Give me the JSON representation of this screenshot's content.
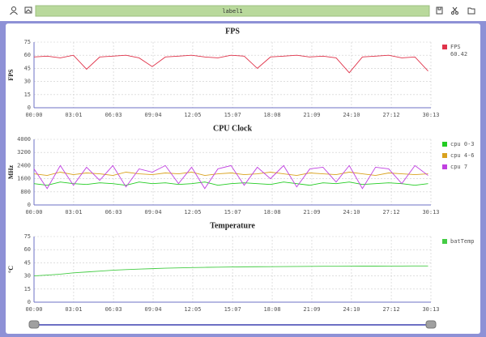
{
  "toolbar": {
    "label": "label1"
  },
  "chart_data": [
    {
      "type": "line",
      "title": "FPS",
      "y_label": "FPS",
      "summary": "60.42",
      "x": [
        0,
        60,
        120,
        180,
        240,
        300,
        360,
        420,
        480,
        540,
        600,
        660,
        720,
        780,
        840,
        900,
        960,
        1020,
        1080,
        1140,
        1200,
        1260,
        1320,
        1380,
        1440,
        1500,
        1560,
        1620,
        1680,
        1740,
        1800
      ],
      "xlim": [
        0,
        1813
      ],
      "xticks": [
        {
          "value": 0,
          "label": "00:00"
        },
        {
          "value": 181,
          "label": "03:01"
        },
        {
          "value": 363,
          "label": "06:03"
        },
        {
          "value": 544,
          "label": "09:04"
        },
        {
          "value": 725,
          "label": "12:05"
        },
        {
          "value": 907,
          "label": "15:07"
        },
        {
          "value": 1088,
          "label": "18:08"
        },
        {
          "value": 1269,
          "label": "21:09"
        },
        {
          "value": 1450,
          "label": "24:10"
        },
        {
          "value": 1632,
          "label": "27:12"
        },
        {
          "value": 1813,
          "label": "30:13"
        }
      ],
      "ylim": [
        0,
        75
      ],
      "yticks": [
        0,
        15,
        30,
        45,
        60,
        75
      ],
      "grid": true,
      "series": [
        {
          "name": "FPS",
          "color": "#e0334a",
          "values": [
            58,
            59,
            57,
            60,
            44,
            58,
            59,
            60,
            57,
            47,
            58,
            59,
            60,
            58,
            57,
            60,
            59,
            45,
            58,
            59,
            60,
            58,
            59,
            57,
            40,
            58,
            59,
            60,
            57,
            58,
            42
          ]
        }
      ]
    },
    {
      "type": "line",
      "title": "CPU Clock",
      "y_label": "MHz",
      "x": [
        0,
        60,
        120,
        180,
        240,
        300,
        360,
        420,
        480,
        540,
        600,
        660,
        720,
        780,
        840,
        900,
        960,
        1020,
        1080,
        1140,
        1200,
        1260,
        1320,
        1380,
        1440,
        1500,
        1560,
        1620,
        1680,
        1740,
        1800
      ],
      "xlim": [
        0,
        1813
      ],
      "xticks": [
        {
          "value": 0,
          "label": "00:00"
        },
        {
          "value": 181,
          "label": "03:01"
        },
        {
          "value": 363,
          "label": "06:03"
        },
        {
          "value": 544,
          "label": "09:04"
        },
        {
          "value": 725,
          "label": "12:05"
        },
        {
          "value": 907,
          "label": "15:07"
        },
        {
          "value": 1088,
          "label": "18:08"
        },
        {
          "value": 1269,
          "label": "21:09"
        },
        {
          "value": 1450,
          "label": "24:10"
        },
        {
          "value": 1632,
          "label": "27:12"
        },
        {
          "value": 1813,
          "label": "30:13"
        }
      ],
      "ylim": [
        0,
        4000
      ],
      "yticks": [
        0,
        800,
        1600,
        2400,
        3200,
        4000
      ],
      "grid": true,
      "series": [
        {
          "name": "cpu 0-3",
          "color": "#22cc22",
          "values": [
            1300,
            1200,
            1400,
            1300,
            1250,
            1350,
            1300,
            1200,
            1400,
            1300,
            1350,
            1250,
            1300,
            1400,
            1200,
            1300,
            1350,
            1300,
            1250,
            1400,
            1300,
            1200,
            1350,
            1300,
            1400,
            1250,
            1300,
            1350,
            1300,
            1200,
            1300
          ]
        },
        {
          "name": "cpu 4-6",
          "color": "#d9a21e",
          "values": [
            1900,
            1800,
            2000,
            1850,
            1950,
            1900,
            1800,
            2000,
            1900,
            1850,
            1950,
            1900,
            2000,
            1800,
            1900,
            1950,
            1850,
            1900,
            2000,
            1900,
            1800,
            1950,
            1900,
            1850,
            2000,
            1900,
            1800,
            1950,
            1900,
            1850,
            1900
          ]
        },
        {
          "name": "cpu 7",
          "color": "#c040e0",
          "values": [
            2200,
            1000,
            2400,
            1200,
            2300,
            1500,
            2400,
            1100,
            2200,
            2000,
            2400,
            1300,
            2300,
            1000,
            2200,
            2400,
            1200,
            2300,
            1600,
            2400,
            1100,
            2200,
            2300,
            1400,
            2400,
            1000,
            2300,
            2200,
            1300,
            2400,
            1800
          ]
        }
      ]
    },
    {
      "type": "line",
      "title": "Temperature",
      "y_label": "°C",
      "x": [
        0,
        60,
        120,
        180,
        240,
        300,
        360,
        420,
        480,
        540,
        600,
        660,
        720,
        780,
        840,
        900,
        960,
        1020,
        1080,
        1140,
        1200,
        1260,
        1320,
        1380,
        1440,
        1500,
        1560,
        1620,
        1680,
        1740,
        1800
      ],
      "xlim": [
        0,
        1813
      ],
      "xticks": [
        {
          "value": 0,
          "label": "00:00"
        },
        {
          "value": 181,
          "label": "03:01"
        },
        {
          "value": 363,
          "label": "06:03"
        },
        {
          "value": 544,
          "label": "09:04"
        },
        {
          "value": 725,
          "label": "12:05"
        },
        {
          "value": 907,
          "label": "15:07"
        },
        {
          "value": 1088,
          "label": "18:08"
        },
        {
          "value": 1269,
          "label": "21:09"
        },
        {
          "value": 1450,
          "label": "24:10"
        },
        {
          "value": 1632,
          "label": "27:12"
        },
        {
          "value": 1813,
          "label": "30:13"
        }
      ],
      "ylim": [
        0,
        75
      ],
      "yticks": [
        0,
        15,
        30,
        45,
        60,
        75
      ],
      "grid": true,
      "series": [
        {
          "name": "batTemp",
          "color": "#44cc44",
          "values": [
            30,
            31,
            32,
            33.5,
            34.5,
            35.5,
            36.5,
            37.2,
            37.8,
            38.3,
            38.8,
            39.2,
            39.5,
            39.8,
            40,
            40.2,
            40.4,
            40.5,
            40.6,
            40.7,
            40.8,
            40.9,
            41,
            41,
            41.1,
            41.2,
            41.2,
            41.3,
            41.3,
            41.4,
            41.4
          ]
        }
      ]
    }
  ]
}
